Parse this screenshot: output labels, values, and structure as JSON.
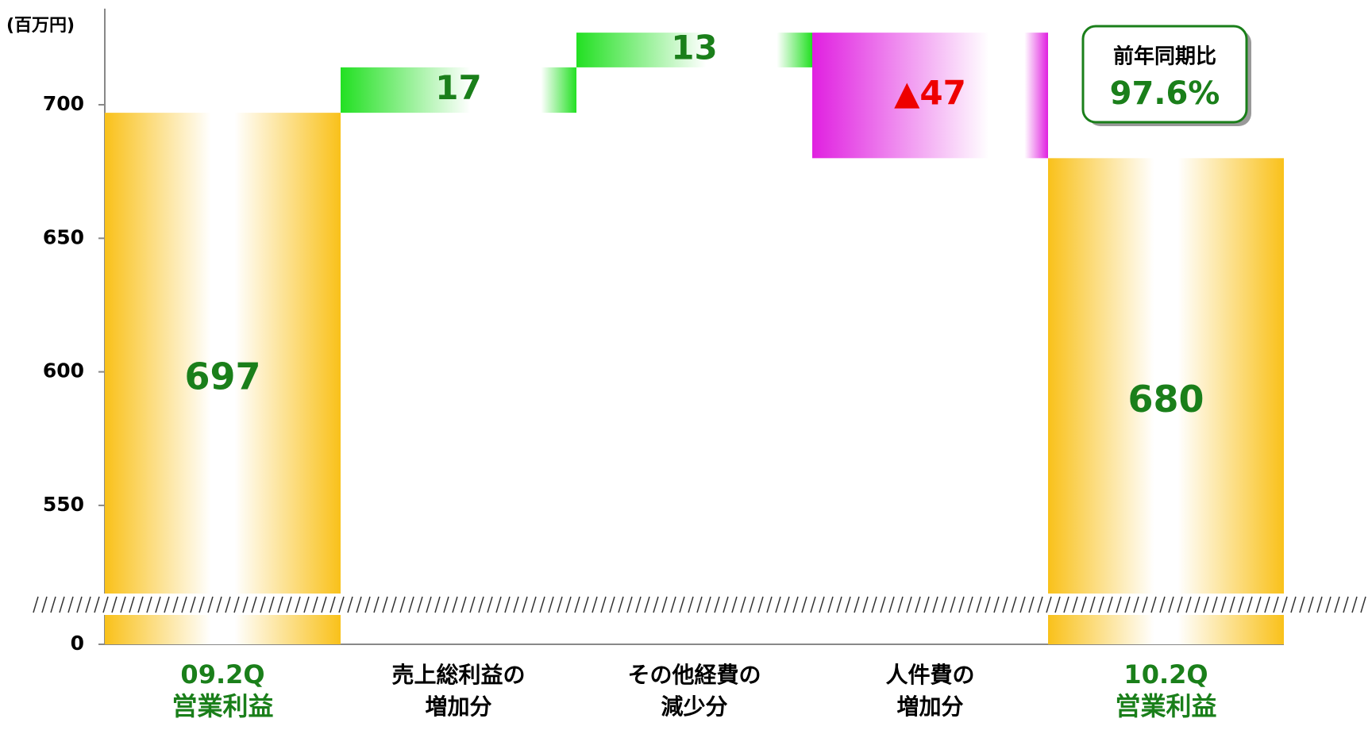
{
  "chart_data": {
    "type": "waterfall",
    "unit_label": "(百万円)",
    "categories": [
      [
        "09.2Q",
        "営業利益"
      ],
      [
        "売上総利益の",
        "増加分"
      ],
      [
        "その他経費の",
        "減少分"
      ],
      [
        "人件費の",
        "増加分"
      ],
      [
        "10.2Q",
        "営業利益"
      ]
    ],
    "values": [
      697,
      17,
      13,
      -47,
      680
    ],
    "value_labels": [
      "697",
      "17",
      "13",
      "▲47",
      "680"
    ],
    "is_total": [
      true,
      false,
      false,
      false,
      true
    ],
    "ylim": [
      0,
      736
    ],
    "axis_break": [
      11,
      517
    ],
    "yticks": [
      0,
      550,
      600,
      650,
      700
    ],
    "total_color": "#f9c11a",
    "increase_color": "#22e022",
    "decrease_color": "#e020e0",
    "label_color": "#1a7f1a",
    "negative_label_color": "#ee0000",
    "annotation": {
      "title": "前年同期比",
      "text": "97.6%"
    }
  }
}
